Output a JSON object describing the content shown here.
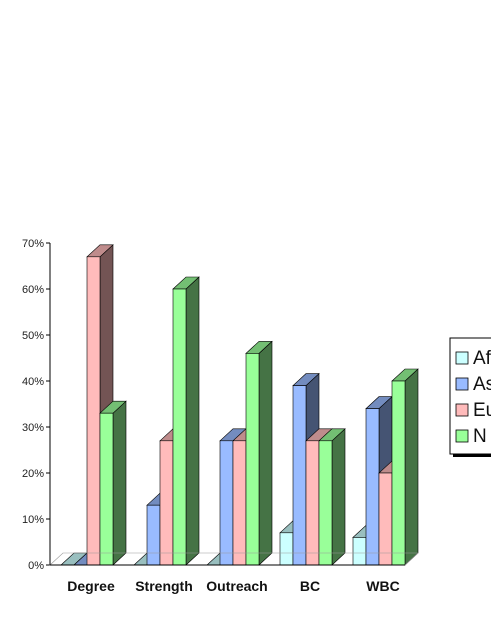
{
  "chart_data": {
    "type": "bar",
    "title": "",
    "xlabel": "",
    "ylabel": "",
    "ylim": [
      0,
      70
    ],
    "yticks": [
      "0%",
      "10%",
      "20%",
      "30%",
      "40%",
      "50%",
      "60%",
      "70%"
    ],
    "categories": [
      "Degree",
      "Strength",
      "Outreach",
      "BC",
      "WBC"
    ],
    "series": [
      {
        "name": "Af",
        "color": "#ccffff",
        "values": [
          0,
          0,
          0,
          7,
          6
        ]
      },
      {
        "name": "As",
        "color": "#99bbff",
        "values": [
          0,
          13,
          27,
          39,
          34
        ]
      },
      {
        "name": "Eu",
        "color": "#ffbbbb",
        "values": [
          67,
          27,
          27,
          27,
          20
        ]
      },
      {
        "name": "N",
        "color": "#99ff99",
        "values": [
          33,
          60,
          46,
          27,
          40
        ]
      }
    ],
    "legend": {
      "placement": "right",
      "labels": [
        "Af",
        "As",
        "Eu",
        "N"
      ]
    },
    "style": "3d-columns",
    "grid": false
  }
}
